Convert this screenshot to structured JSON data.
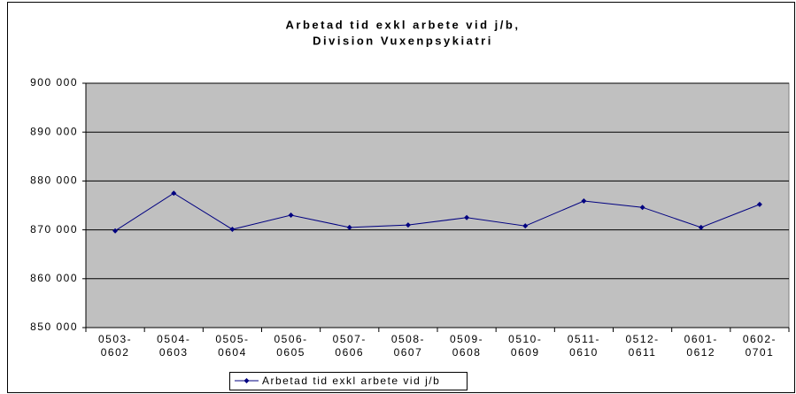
{
  "chart_data": {
    "type": "line",
    "title": [
      "Arbetad tid exkl arbete vid j/b,",
      "Division Vuxenpsykiatri"
    ],
    "categories": [
      [
        "0503-",
        "0602"
      ],
      [
        "0504-",
        "0603"
      ],
      [
        "0505-",
        "0604"
      ],
      [
        "0506-",
        "0605"
      ],
      [
        "0507-",
        "0606"
      ],
      [
        "0508-",
        "0607"
      ],
      [
        "0509-",
        "0608"
      ],
      [
        "0510-",
        "0609"
      ],
      [
        "0511-",
        "0610"
      ],
      [
        "0512-",
        "0611"
      ],
      [
        "0601-",
        "0612"
      ],
      [
        "0602-",
        "0701"
      ]
    ],
    "series": [
      {
        "name": "Arbetad tid exkl arbete vid j/b",
        "color": "#000080",
        "values": [
          869800,
          877500,
          870100,
          873000,
          870500,
          871000,
          872500,
          870800,
          875900,
          874600,
          870500,
          875200
        ]
      }
    ],
    "ylim": [
      850000,
      900000
    ],
    "yticks": [
      {
        "value": 850000,
        "label": "850 000"
      },
      {
        "value": 860000,
        "label": "860 000"
      },
      {
        "value": 870000,
        "label": "870 000"
      },
      {
        "value": 880000,
        "label": "880 000"
      },
      {
        "value": 890000,
        "label": "890 000"
      },
      {
        "value": 900000,
        "label": "900 000"
      }
    ],
    "grid": true,
    "legend": "bottom",
    "plot_background": "#c0c0c0"
  }
}
